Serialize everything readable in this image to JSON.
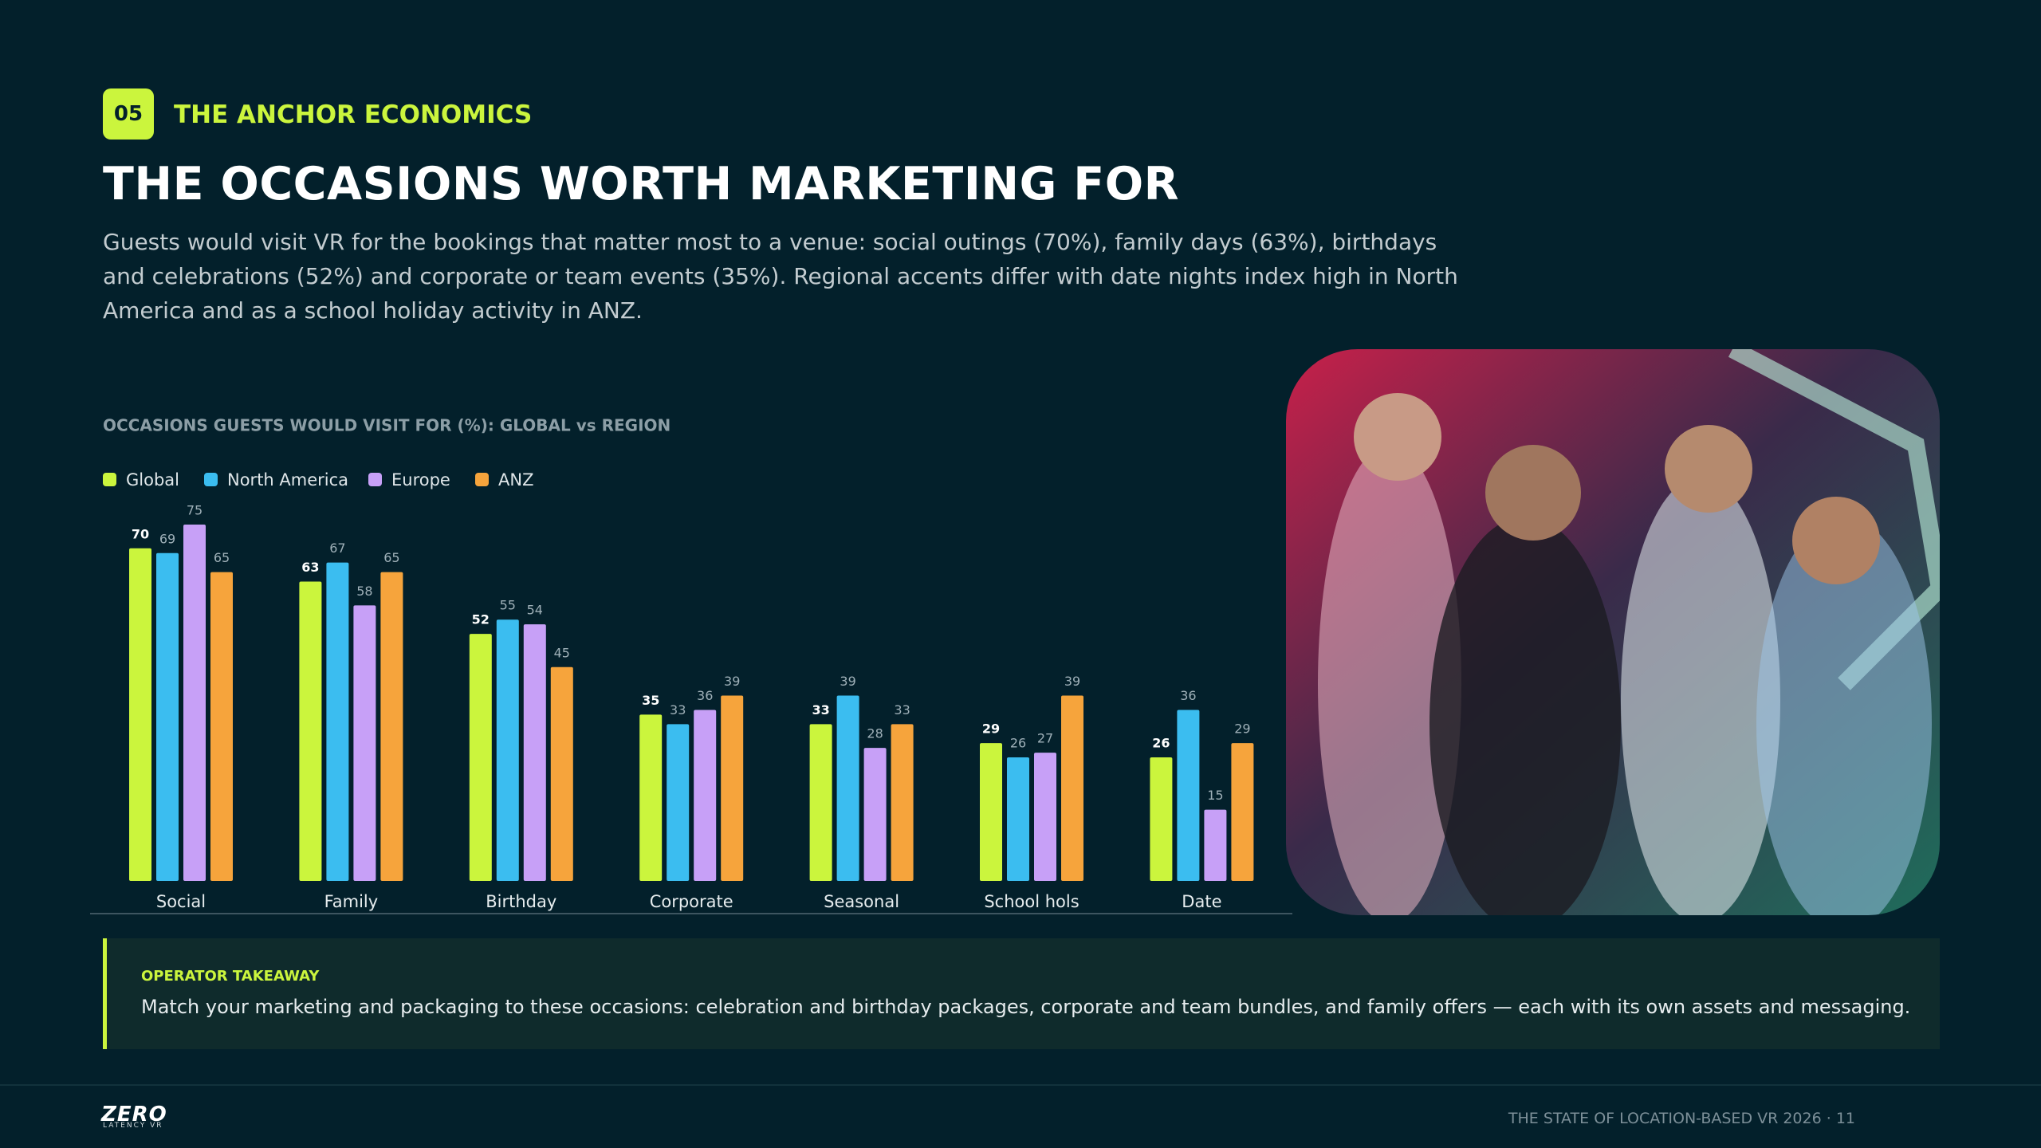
{
  "header": {
    "badge": "05",
    "kicker": "THE ANCHOR ECONOMICS",
    "title": "THE OCCASIONS WORTH MARKETING FOR",
    "description": "Guests would visit VR for the bookings that matter most to a venue: social outings (70%), family days (63%), birthdays and celebrations (52%) and corporate or team events (35%). Regional accents differ with date nights index high in North America and as a school holiday activity in ANZ."
  },
  "chart_data": {
    "type": "bar",
    "title": "OCCASIONS GUESTS WOULD VISIT FOR (%): GLOBAL vs REGION",
    "categories": [
      "Social",
      "Family",
      "Birthday",
      "Corporate",
      "Seasonal",
      "School hols",
      "Date"
    ],
    "series": [
      {
        "name": "Global",
        "color": "#cbf53d",
        "values": [
          70,
          63,
          52,
          35,
          33,
          29,
          26
        ]
      },
      {
        "name": "North America",
        "color": "#3bbdf0",
        "values": [
          69,
          67,
          55,
          33,
          39,
          26,
          36
        ]
      },
      {
        "name": "Europe",
        "color": "#c7a0f7",
        "values": [
          75,
          58,
          54,
          36,
          28,
          27,
          15
        ]
      },
      {
        "name": "ANZ",
        "color": "#f6a43c",
        "values": [
          65,
          65,
          45,
          39,
          33,
          39,
          29
        ]
      }
    ],
    "ylim": [
      0,
      100
    ],
    "legend": "top-left"
  },
  "takeaway": {
    "label": "OPERATOR TAKEAWAY",
    "text": "Match your marketing and packaging to these occasions: celebration and birthday packages, corporate and team bundles, and family offers — each with its own assets and messaging."
  },
  "footer": {
    "logo": "ZERO",
    "logo_sub": "LATENCY VR",
    "text": "THE STATE OF LOCATION-BASED VR 2026 · 11"
  }
}
